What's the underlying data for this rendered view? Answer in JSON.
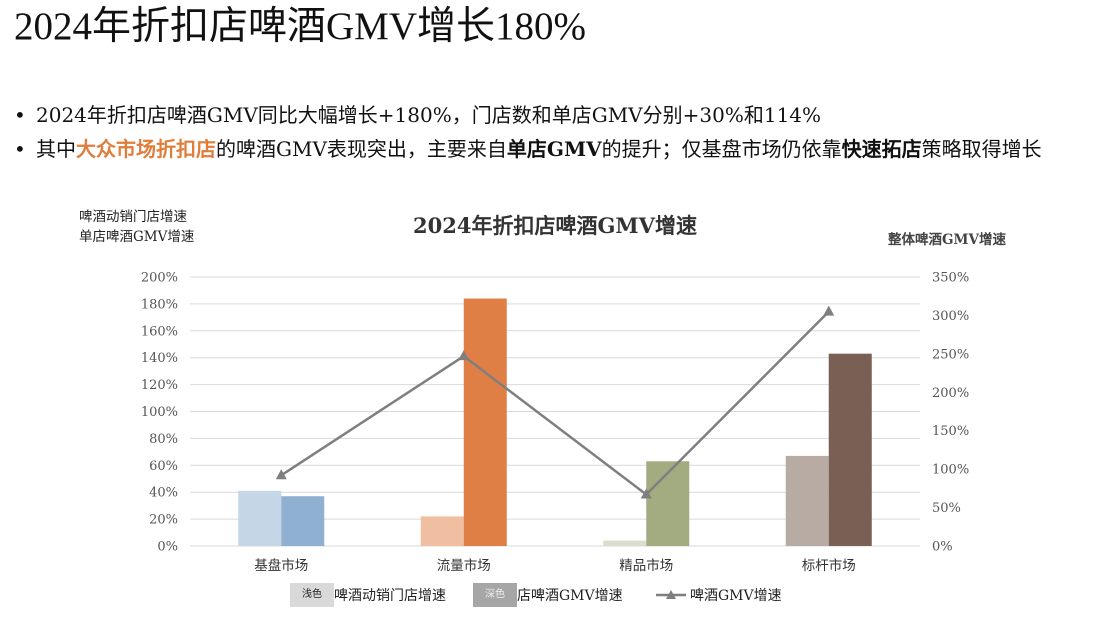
{
  "title": "2024年折扣店啤酒GMV增长180%",
  "bullets": [
    {
      "segments": [
        {
          "text": "2024年折扣店啤酒GMV同比大幅增长+180%，门店数和单店GMV分别+30%和114%",
          "style": "normal"
        }
      ]
    },
    {
      "segments": [
        {
          "text": "其中",
          "style": "normal"
        },
        {
          "text": "大众市场折扣店",
          "style": "orange"
        },
        {
          "text": "的啤酒GMV表现突出，主要来自",
          "style": "normal"
        },
        {
          "text": "单店GMV",
          "style": "bold"
        },
        {
          "text": "的提升；仅基盘市场仍依靠",
          "style": "normal"
        },
        {
          "text": "快速拓店",
          "style": "bold"
        },
        {
          "text": "策略取得增长",
          "style": "normal"
        }
      ]
    }
  ],
  "chart_labels": {
    "left_axis_line1": "啤酒动销门店增速",
    "left_axis_line2": "单店啤酒GMV增速",
    "right_axis": "整体啤酒GMV增速",
    "legend_light_swatch": "浅色",
    "legend_dark_swatch": "深色",
    "legend_series1": "啤酒动销门店增速",
    "legend_series2": "店啤酒GMV增速",
    "legend_series3": "啤酒GMV增速"
  },
  "colors": {
    "light_bars": [
      "#c5d7e6",
      "#f0bfa2",
      "#dadfcd",
      "#b7aba3"
    ],
    "dark_bars": [
      "#8fb0d0",
      "#df7f45",
      "#a3ab80",
      "#7a5f55"
    ],
    "line": "#7f7f7f",
    "highlight": "#e07d3a"
  },
  "chart_data": {
    "type": "bar+line",
    "title": "2024年折扣店啤酒GMV增速",
    "categories": [
      "基盘市场",
      "流量市场",
      "精品市场",
      "标杆市场"
    ],
    "series": [
      {
        "name": "啤酒动销门店增速",
        "axis": "left",
        "type": "bar",
        "values": [
          41,
          22,
          4,
          67
        ]
      },
      {
        "name": "单店啤酒GMV增速",
        "axis": "left",
        "type": "bar",
        "values": [
          37,
          184,
          63,
          143
        ]
      },
      {
        "name": "啤酒GMV增速",
        "axis": "right",
        "type": "line",
        "values": [
          92,
          247,
          67,
          305
        ]
      }
    ],
    "left_axis": {
      "min": 0,
      "max": 200,
      "step": 20,
      "ticks": [
        "0%",
        "20%",
        "40%",
        "60%",
        "80%",
        "100%",
        "120%",
        "140%",
        "160%",
        "180%",
        "200%"
      ]
    },
    "right_axis": {
      "min": 0,
      "max": 350,
      "step": 50,
      "ticks": [
        "0%",
        "50%",
        "100%",
        "150%",
        "200%",
        "250%",
        "300%",
        "350%"
      ]
    },
    "grid": true,
    "legend_position": "bottom"
  }
}
